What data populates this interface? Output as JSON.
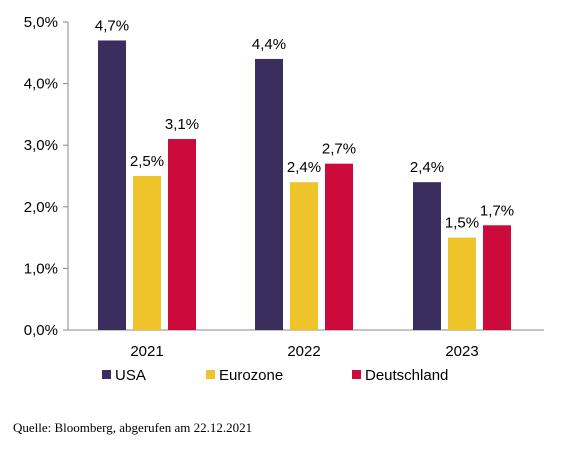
{
  "chart_data": {
    "type": "bar",
    "title": "",
    "xlabel": "",
    "ylabel": "",
    "categories": [
      "2021",
      "2022",
      "2023"
    ],
    "series": [
      {
        "name": "USA",
        "color": "#3a2e5e",
        "values": [
          4.7,
          4.4,
          2.4
        ],
        "labels": [
          "4,7%",
          "4,4%",
          "2,4%"
        ]
      },
      {
        "name": "Eurozone",
        "color": "#efc32a",
        "values": [
          2.5,
          2.4,
          1.5
        ],
        "labels": [
          "2,5%",
          "2,4%",
          "1,5%"
        ]
      },
      {
        "name": "Deutschland",
        "color": "#cc0a3c",
        "values": [
          3.1,
          2.7,
          1.7
        ],
        "labels": [
          "3,1%",
          "2,7%",
          "1,7%"
        ]
      }
    ],
    "ylim": [
      0,
      5
    ],
    "yticks": [
      {
        "value": 0,
        "label": "0,0%"
      },
      {
        "value": 1,
        "label": "1,0%"
      },
      {
        "value": 2,
        "label": "2,0%"
      },
      {
        "value": 3,
        "label": "3,0%"
      },
      {
        "value": 4,
        "label": "4,0%"
      },
      {
        "value": 5,
        "label": "5,0%"
      }
    ],
    "grid": false,
    "legend_position": "bottom-left"
  },
  "source_note": "Quelle: Bloomberg, abgerufen am 22.12.2021"
}
